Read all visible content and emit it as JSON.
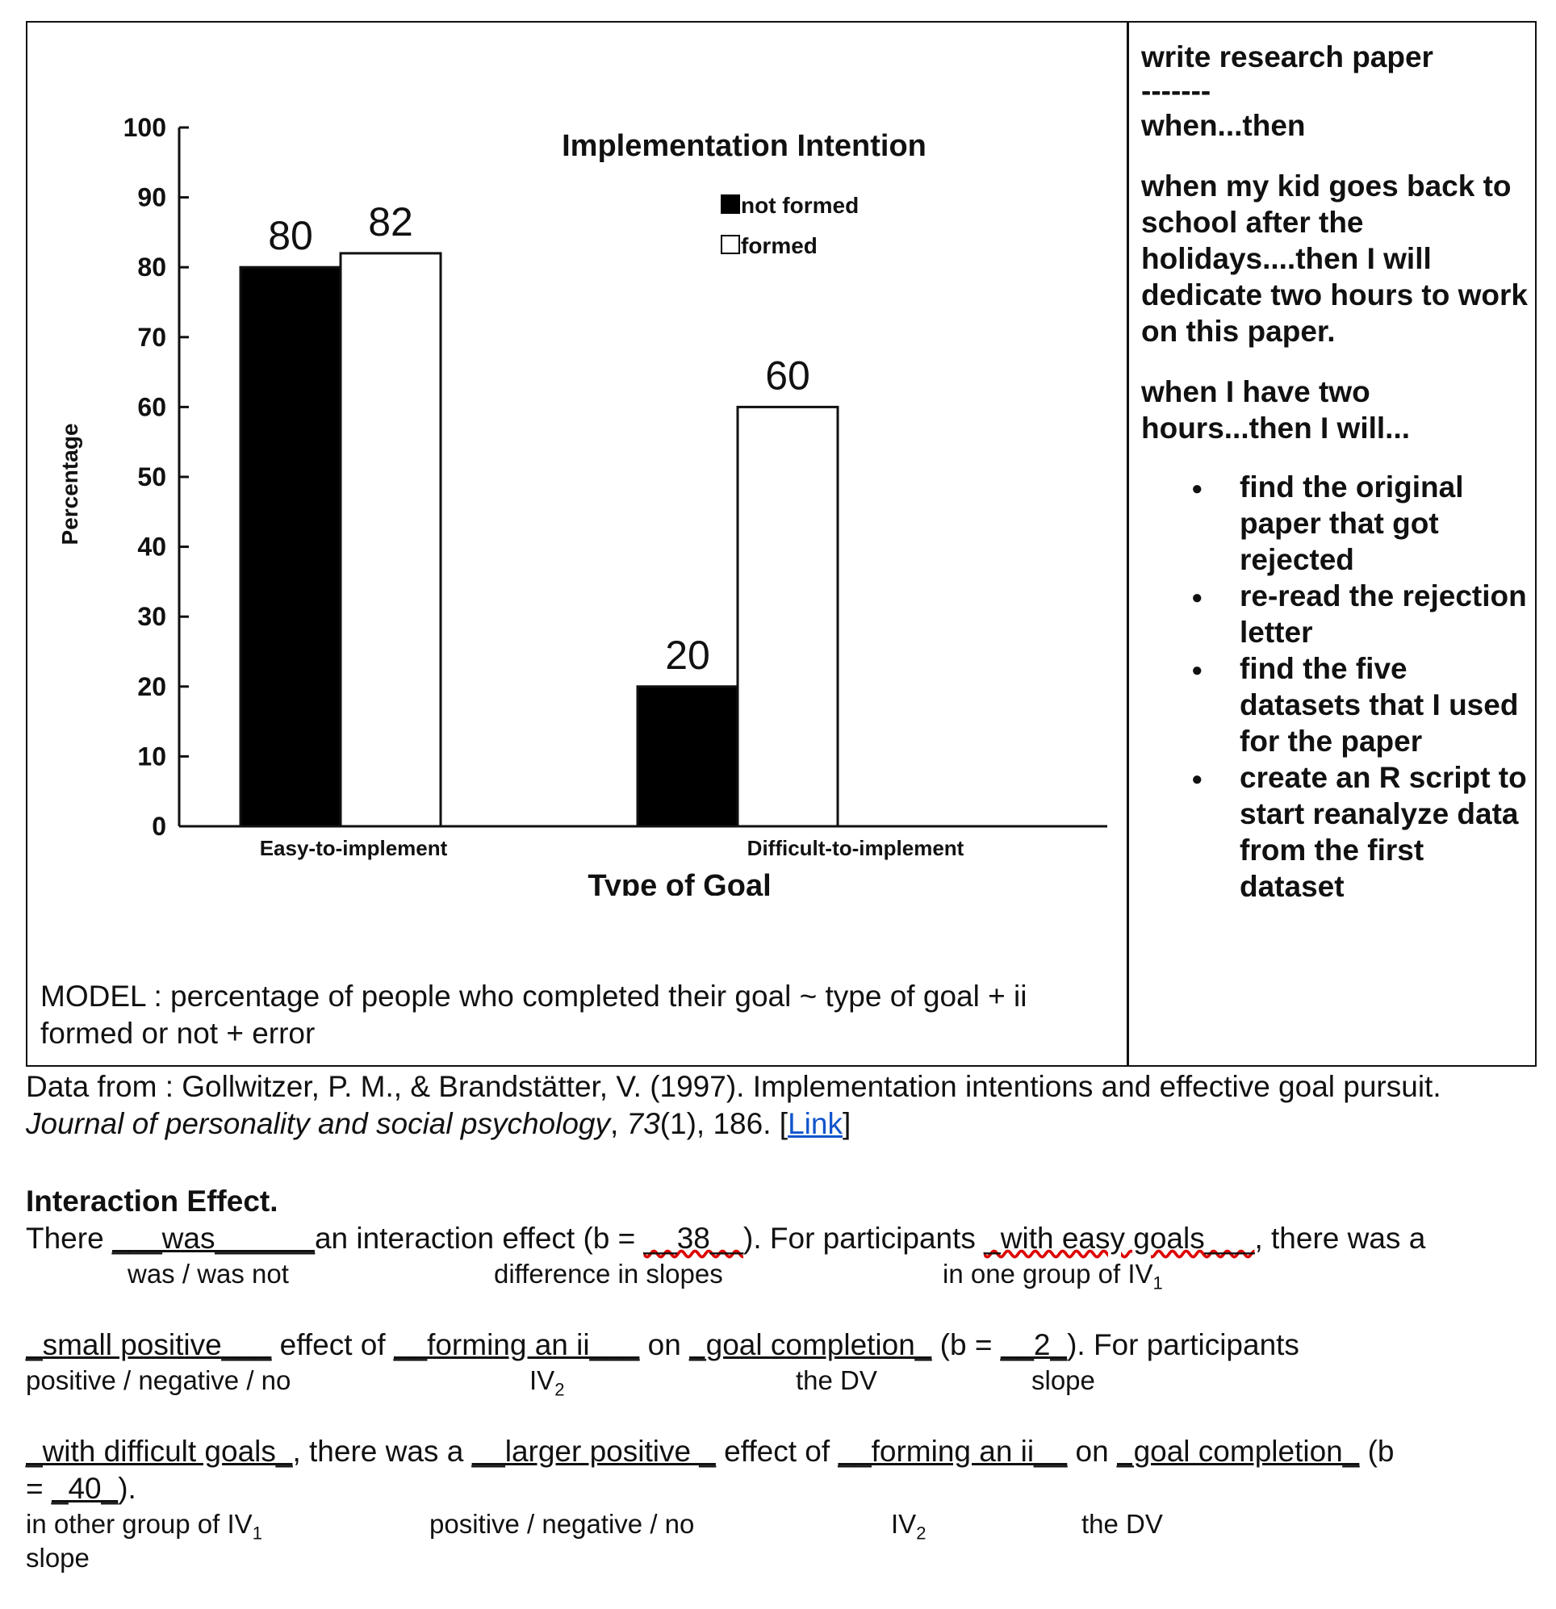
{
  "chart_data": {
    "type": "bar",
    "title": "Implementation Intention",
    "categories": [
      "Easy-to-implement",
      "Difficult-to-implement"
    ],
    "series": [
      {
        "name": "not formed",
        "color": "#000000",
        "values": [
          80,
          20
        ]
      },
      {
        "name": "formed",
        "color": "#ffffff",
        "values": [
          82,
          60
        ]
      }
    ],
    "data_labels": [
      "80",
      "82",
      "20",
      "60"
    ],
    "xlabel": "Type of Goal",
    "ylabel": "Percentage",
    "ylim": [
      0,
      100
    ],
    "yticks": [
      "0",
      "10",
      "20",
      "30",
      "40",
      "50",
      "60",
      "70",
      "80",
      "90",
      "100"
    ],
    "legend_position": "top-right",
    "grid": false
  },
  "model_text": "MODEL : percentage of people who completed their goal ~ type of goal + ii formed or not + error",
  "right_cell": {
    "title": "write research paper",
    "dashes": "-------",
    "when_then": "when...then",
    "para1": "when my kid goes back to school after the holidays....then I will dedicate two hours to work on this paper.",
    "para2": "when I have two hours...then I will...",
    "tasks": [
      "find the original paper that got rejected",
      "re-read the rejection letter",
      "find the five datasets that I used for the paper",
      "create an R script to start reanalyze data from the first dataset"
    ]
  },
  "citation": {
    "prefix": "Data from : Gollwitzer, P. M., & Brandstätter, V. (1997). Implementation intentions and effective goal pursuit. ",
    "journal": "Journal of personality and social psychology",
    "sep": ", ",
    "volume": "73",
    "rest": "(1), 186. [",
    "link": "Link",
    "close": "]"
  },
  "interaction": {
    "heading": "Interaction Effect.",
    "line1": {
      "t1": "There ",
      "b1": "___was______",
      "t2": "an interaction effect (b = ",
      "b2": "__38__",
      "t3": ").  For participants ",
      "b3": "_with easy goals___",
      "t4": ", there was a"
    },
    "hint1": {
      "a": "was / was not",
      "b": "difference in slopes",
      "c": "in one group of IV",
      "c_sub": "1"
    },
    "line2": {
      "b1": "_small positive___",
      "t1": " effect of ",
      "b2": "__forming an ii___",
      "t2": " on ",
      "b3": "_goal completion_",
      "t3": " (b = ",
      "b4": "__2_",
      "t4": "). For participants"
    },
    "hint2": {
      "a": "positive / negative / no",
      "b": "IV",
      "b_sub": "2",
      "c": "the DV",
      "d": "slope"
    },
    "line3": {
      "b1": "_with difficult goals_",
      "t1": ", there was a ",
      "b2": "__larger positive _",
      "t2": " effect of ",
      "b3": "__forming an ii__",
      "t3": " on ",
      "b4": "_goal completion_",
      "t4": " (b"
    },
    "line4": {
      "t1": "= ",
      "b1": "_40_",
      "t2": ")."
    },
    "hint3": {
      "a": "in other group of IV",
      "a_sub": "1",
      "b": "positive / negative / no",
      "c": "IV",
      "c_sub": "2",
      "d": "the DV"
    },
    "hint4": "slope"
  }
}
